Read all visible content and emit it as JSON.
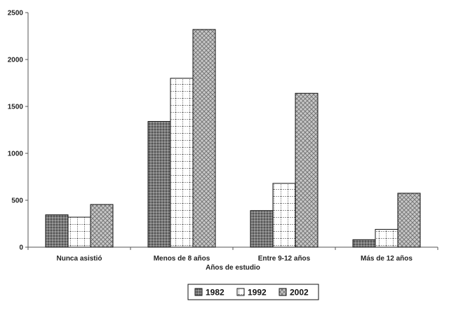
{
  "chart_data": {
    "type": "bar",
    "categories": [
      "Nunca asistió",
      "Menos de 8 años",
      "Entre 9-12 años",
      "Más de 12 años"
    ],
    "series": [
      {
        "name": "1982",
        "values": [
          345,
          1340,
          390,
          80
        ],
        "pattern": "dots"
      },
      {
        "name": "1992",
        "values": [
          320,
          1800,
          680,
          190
        ],
        "pattern": "grid"
      },
      {
        "name": "2002",
        "values": [
          455,
          2320,
          1640,
          575
        ],
        "pattern": "cross"
      }
    ],
    "xlabel": "Años de estudio",
    "ylabel": "",
    "ylim": [
      0,
      2500
    ],
    "yticks": [
      0,
      500,
      1000,
      1500,
      2000,
      2500
    ],
    "grid": false,
    "legend": "bottom",
    "colors": {
      "axis": "#555555",
      "bar_stroke": "#111111"
    }
  }
}
